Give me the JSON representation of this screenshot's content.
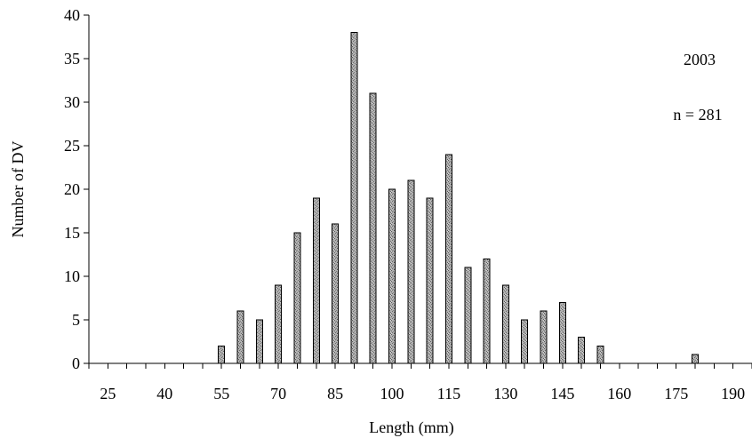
{
  "chart_data": {
    "type": "bar",
    "title": "",
    "xlabel": "Length (mm)",
    "ylabel": "Number of DV",
    "ylim": [
      0,
      40
    ],
    "yticks": [
      0,
      5,
      10,
      15,
      20,
      25,
      30,
      35,
      40
    ],
    "xlim": [
      20,
      195
    ],
    "xticks_labeled": [
      25,
      40,
      55,
      70,
      85,
      100,
      115,
      130,
      145,
      160,
      175,
      190
    ],
    "x_minor_step": 5,
    "grid": false,
    "legend": false,
    "annotations": [
      "2003",
      "n = 281"
    ],
    "bar_fill_color": "#9a9a9a",
    "bar_edge_color": "#000000",
    "series": [
      {
        "x": [
          25,
          30,
          35,
          40,
          45,
          50,
          55,
          60,
          65,
          70,
          75,
          80,
          85,
          90,
          95,
          100,
          105,
          110,
          115,
          120,
          125,
          130,
          135,
          140,
          145,
          150,
          155,
          160,
          165,
          170,
          175,
          180,
          185,
          190
        ],
        "values": [
          0,
          0,
          0,
          0,
          0,
          0,
          2,
          6,
          5,
          9,
          15,
          19,
          16,
          38,
          31,
          20,
          21,
          19,
          24,
          11,
          12,
          9,
          5,
          6,
          7,
          3,
          2,
          0,
          0,
          0,
          0,
          1,
          0,
          0
        ]
      }
    ]
  }
}
